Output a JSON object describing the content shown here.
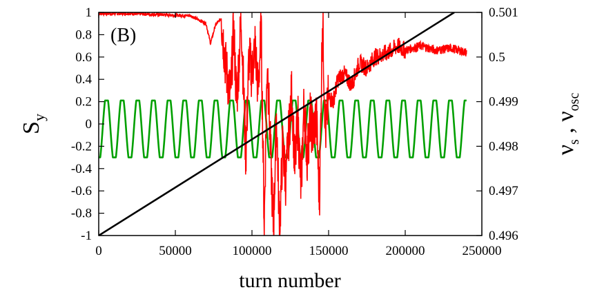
{
  "chart_data": {
    "type": "line",
    "panel_label": "(B)",
    "xlabel": "turn number",
    "ylabel_left": {
      "main": "S",
      "sub": "y"
    },
    "ylabel_right": {
      "nu": "ν",
      "sub1": "s",
      "sep": " , ",
      "sub2": "osc"
    },
    "xlim": [
      0,
      250000
    ],
    "ylim_left": [
      -1,
      1
    ],
    "ylim_right": [
      0.496,
      0.501
    ],
    "x_ticks": [
      "0",
      "50000",
      "100000",
      "150000",
      "200000",
      "250000"
    ],
    "x_tick_values": [
      0,
      50000,
      100000,
      150000,
      200000,
      250000
    ],
    "y_left_ticks": [
      "1",
      "0.8",
      "0.6",
      "0.4",
      "0.2",
      "0",
      "-0.2",
      "-0.4",
      "-0.6",
      "-0.8",
      "-1"
    ],
    "y_left_tick_values": [
      1,
      0.8,
      0.6,
      0.4,
      0.2,
      0,
      -0.2,
      -0.4,
      -0.6,
      -0.8,
      -1
    ],
    "y_right_ticks": [
      "0.501",
      "0.5",
      "0.499",
      "0.498",
      "0.497",
      "0.496"
    ],
    "y_right_tick_values": [
      0.501,
      0.5,
      0.499,
      0.498,
      0.497,
      0.496
    ],
    "grid": false,
    "series": [
      {
        "color": "#ff0000",
        "axis": "left",
        "x": [
          0,
          20000,
          40000,
          60000,
          70000,
          73000,
          76000,
          80000,
          83000,
          86000,
          88000,
          90000,
          93000,
          96000,
          98000,
          100000,
          102000,
          104000,
          106000,
          108000,
          110000,
          112000,
          114000,
          116000,
          118000,
          120000,
          122000,
          124000,
          126000,
          128000,
          130000,
          132000,
          134000,
          136000,
          138000,
          140000,
          142000,
          144000,
          146000,
          148000,
          150000,
          153000,
          156000,
          160000,
          165000,
          170000,
          175000,
          180000,
          185000,
          190000,
          195000,
          200000,
          210000,
          220000,
          230000,
          240000
        ],
        "y": [
          0.99,
          0.99,
          0.98,
          0.97,
          0.9,
          0.72,
          0.88,
          0.95,
          0.5,
          0.25,
          0.85,
          0.2,
          0.95,
          -0.3,
          0.6,
          0.45,
          0.7,
          0.3,
          0.85,
          -0.9,
          0.6,
          -0.2,
          -0.95,
          0.1,
          -0.98,
          -0.2,
          -0.5,
          -0.1,
          0.3,
          -0.4,
          0.05,
          -0.6,
          0.2,
          -0.3,
          0.05,
          -0.1,
          0.1,
          -0.7,
          0.98,
          -0.1,
          0.25,
          0.2,
          0.4,
          0.45,
          0.35,
          0.55,
          0.5,
          0.6,
          0.62,
          0.65,
          0.7,
          0.66,
          0.7,
          0.66,
          0.68,
          0.64
        ]
      },
      {
        "color": "#00a000",
        "axis": "left",
        "type": "oscillation",
        "x_start": 0,
        "x_end": 240000,
        "period": 10200,
        "y_max": 0.21,
        "y_min": -0.3
      },
      {
        "color": "#000000",
        "axis": "right",
        "x": [
          0,
          232000
        ],
        "y": [
          0.496,
          0.501
        ]
      }
    ]
  }
}
